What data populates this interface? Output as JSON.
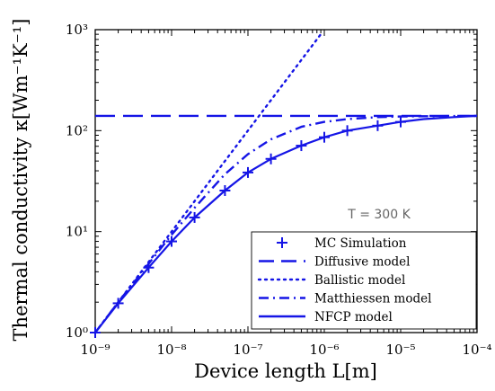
{
  "chart_data": {
    "type": "line",
    "xlabel": "Device length L[m]",
    "ylabel": "Thermal conductivity κ[Wm⁻¹K⁻¹]",
    "xscale": "log",
    "yscale": "log",
    "xlim": [
      1e-09,
      0.0001
    ],
    "ylim": [
      1,
      1000
    ],
    "x_tick_labels": [
      "10⁻⁹",
      "10⁻⁸",
      "10⁻⁷",
      "10⁻⁶",
      "10⁻⁵",
      "10⁻⁴"
    ],
    "y_tick_labels": [
      "10⁰",
      "10¹",
      "10²",
      "10³"
    ],
    "grid": false,
    "legend_position": "bottom-right",
    "annotation": "T = 300 K",
    "colors": {
      "series": "#1515e6",
      "axes": "#000000",
      "annotation": "#666666"
    },
    "series": [
      {
        "name": "MC Simulation",
        "style": "markers-plus",
        "x": [
          1e-09,
          2e-09,
          5e-09,
          1e-08,
          2e-08,
          5e-08,
          1e-07,
          2e-07,
          5e-07,
          1e-06,
          2e-06,
          5e-06,
          1e-05
        ],
        "y": [
          1.0,
          1.95,
          4.4,
          8.0,
          13.8,
          25.5,
          38.5,
          52.5,
          71,
          86,
          100,
          112,
          122
        ]
      },
      {
        "name": "Diffusive model",
        "style": "dashed",
        "x": [
          1e-09,
          0.0001
        ],
        "y": [
          140,
          140
        ]
      },
      {
        "name": "Ballistic model",
        "style": "dotted",
        "x": [
          1e-09,
          1e-08,
          1e-07,
          9e-07
        ],
        "y": [
          1,
          10,
          100,
          900
        ]
      },
      {
        "name": "Matthiessen model",
        "style": "dashdot",
        "x": [
          1e-09,
          2e-09,
          5e-09,
          1e-08,
          2e-08,
          5e-08,
          1e-07,
          2e-07,
          5e-07,
          1e-06,
          2e-06,
          5e-06,
          1e-05,
          2e-05,
          5e-05,
          0.0001
        ],
        "y": [
          1.0,
          2.0,
          4.8,
          9.3,
          17.2,
          37,
          58.5,
          82,
          109,
          122,
          130,
          136,
          138,
          139,
          139.6,
          139.8
        ]
      },
      {
        "name": "NFCP model",
        "style": "solid",
        "x": [
          1e-09,
          2e-09,
          5e-09,
          1e-08,
          2e-08,
          5e-08,
          1e-07,
          2e-07,
          5e-07,
          1e-06,
          2e-06,
          5e-06,
          1e-05,
          2e-05,
          5e-05,
          0.0001
        ],
        "y": [
          1.0,
          1.95,
          4.4,
          8.0,
          13.8,
          25.5,
          38.5,
          52.5,
          71,
          86,
          100,
          112,
          122,
          130,
          136,
          140
        ]
      }
    ]
  }
}
